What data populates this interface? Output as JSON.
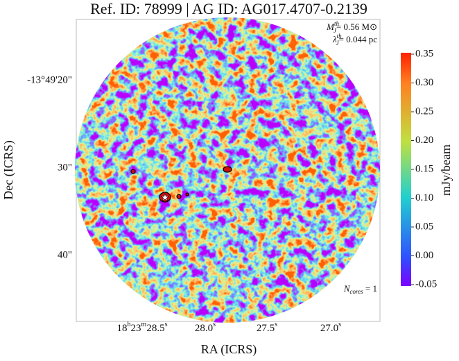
{
  "title": "Ref. ID: 78999 | AG ID: AG017.4707-0.2139",
  "annotations": {
    "mass": {
      "symbol": "M",
      "sub": "J",
      "sup": "th",
      "text": "= 0.56 M⊙"
    },
    "length": {
      "symbol": "λ",
      "sub": "J",
      "sup": "th",
      "text": "= 0.044 pc"
    },
    "cores": {
      "symbol": "N",
      "sub": "cores",
      "text": " = 1"
    }
  },
  "x_axis": {
    "label": "RA (ICRS)",
    "ticks": [
      [
        "18",
        "h",
        "23",
        "m",
        "28.5",
        "s"
      ],
      [
        "28.0",
        "s"
      ],
      [
        "27.5",
        "s"
      ],
      [
        "27.0",
        "s"
      ]
    ]
  },
  "y_axis": {
    "label": "Dec (ICRS)",
    "ticks": [
      "-13°49'20\"",
      "30\"",
      "40\""
    ]
  },
  "colorbar": {
    "label": "mJy/beam",
    "lim": [
      -0.05,
      0.35
    ],
    "ticks": [
      -0.05,
      {
        "value": 0,
        "label": "0.00"
      },
      0.05,
      {
        "value": 0.1,
        "label": "0.10"
      },
      0.15,
      {
        "value": 0.2,
        "label": "0.20"
      },
      0.25,
      {
        "value": 0.3,
        "label": "0.30"
      },
      0.35
    ]
  }
}
